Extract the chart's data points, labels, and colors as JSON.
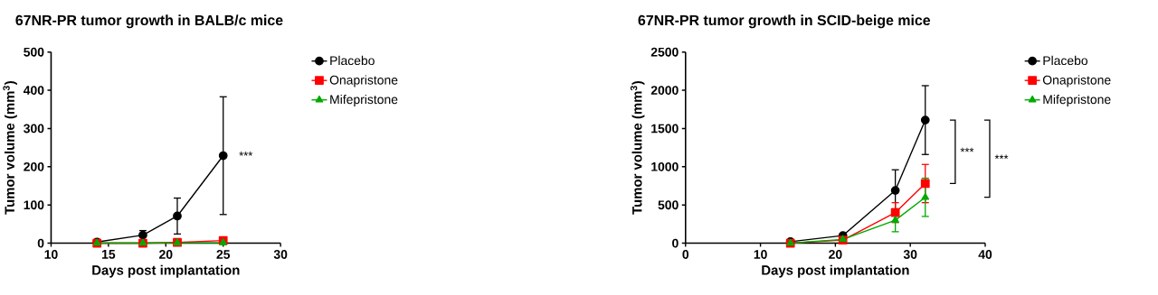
{
  "chart_data": [
    {
      "type": "line",
      "title": "67NR-PR tumor growth in BALB/c mice",
      "xlabel": "Days post implantation",
      "ylabel": "Tumor volume (mm$^{3}$)",
      "xlim": [
        10,
        30
      ],
      "xticks": [
        10,
        15,
        20,
        25,
        30
      ],
      "ylim": [
        0,
        500
      ],
      "yticks": [
        0,
        100,
        200,
        300,
        400,
        500
      ],
      "legend": "right",
      "grid": false,
      "line_style": "solid",
      "x": [
        14,
        18,
        21,
        25
      ],
      "series": [
        {
          "name": "Placebo",
          "color": "#000000",
          "marker": "circle",
          "values": [
            3,
            21,
            71,
            229
          ],
          "errors": [
            null,
            12,
            47,
            154
          ]
        },
        {
          "name": "Onapristone",
          "color": "#ff0000",
          "marker": "square",
          "values": [
            0,
            0,
            2,
            7
          ],
          "errors": [
            null,
            null,
            null,
            null
          ]
        },
        {
          "name": "Mifepristone",
          "color": "#00aa00",
          "marker": "triangle",
          "values": [
            0,
            0,
            1,
            1
          ],
          "errors": [
            null,
            null,
            null,
            null
          ]
        }
      ],
      "annotations": [
        "***"
      ]
    },
    {
      "type": "line",
      "title": "67NR-PR tumor growth in SCID-beige mice",
      "xlabel": "Days post implantation",
      "ylabel": "Tumor volume (mm$^{3}$)",
      "xlim": [
        0,
        40
      ],
      "xticks": [
        0,
        10,
        20,
        30,
        40
      ],
      "ylim": [
        0,
        2500
      ],
      "yticks": [
        0,
        500,
        1000,
        1500,
        2000,
        2500
      ],
      "legend": "right",
      "grid": false,
      "line_style": "solid",
      "x": [
        14,
        21,
        28,
        32
      ],
      "series": [
        {
          "name": "Placebo",
          "color": "#000000",
          "marker": "circle",
          "values": [
            20,
            100,
            690,
            1610
          ],
          "errors": [
            null,
            null,
            270,
            450
          ]
        },
        {
          "name": "Onapristone",
          "color": "#ff0000",
          "marker": "square",
          "values": [
            0,
            40,
            400,
            780
          ],
          "errors": [
            null,
            null,
            130,
            250
          ]
        },
        {
          "name": "Mifepristone",
          "color": "#00aa00",
          "marker": "triangle",
          "values": [
            0,
            50,
            300,
            600
          ],
          "errors": [
            null,
            null,
            150,
            250
          ]
        }
      ],
      "annotations": [
        "***",
        "***"
      ]
    }
  ]
}
